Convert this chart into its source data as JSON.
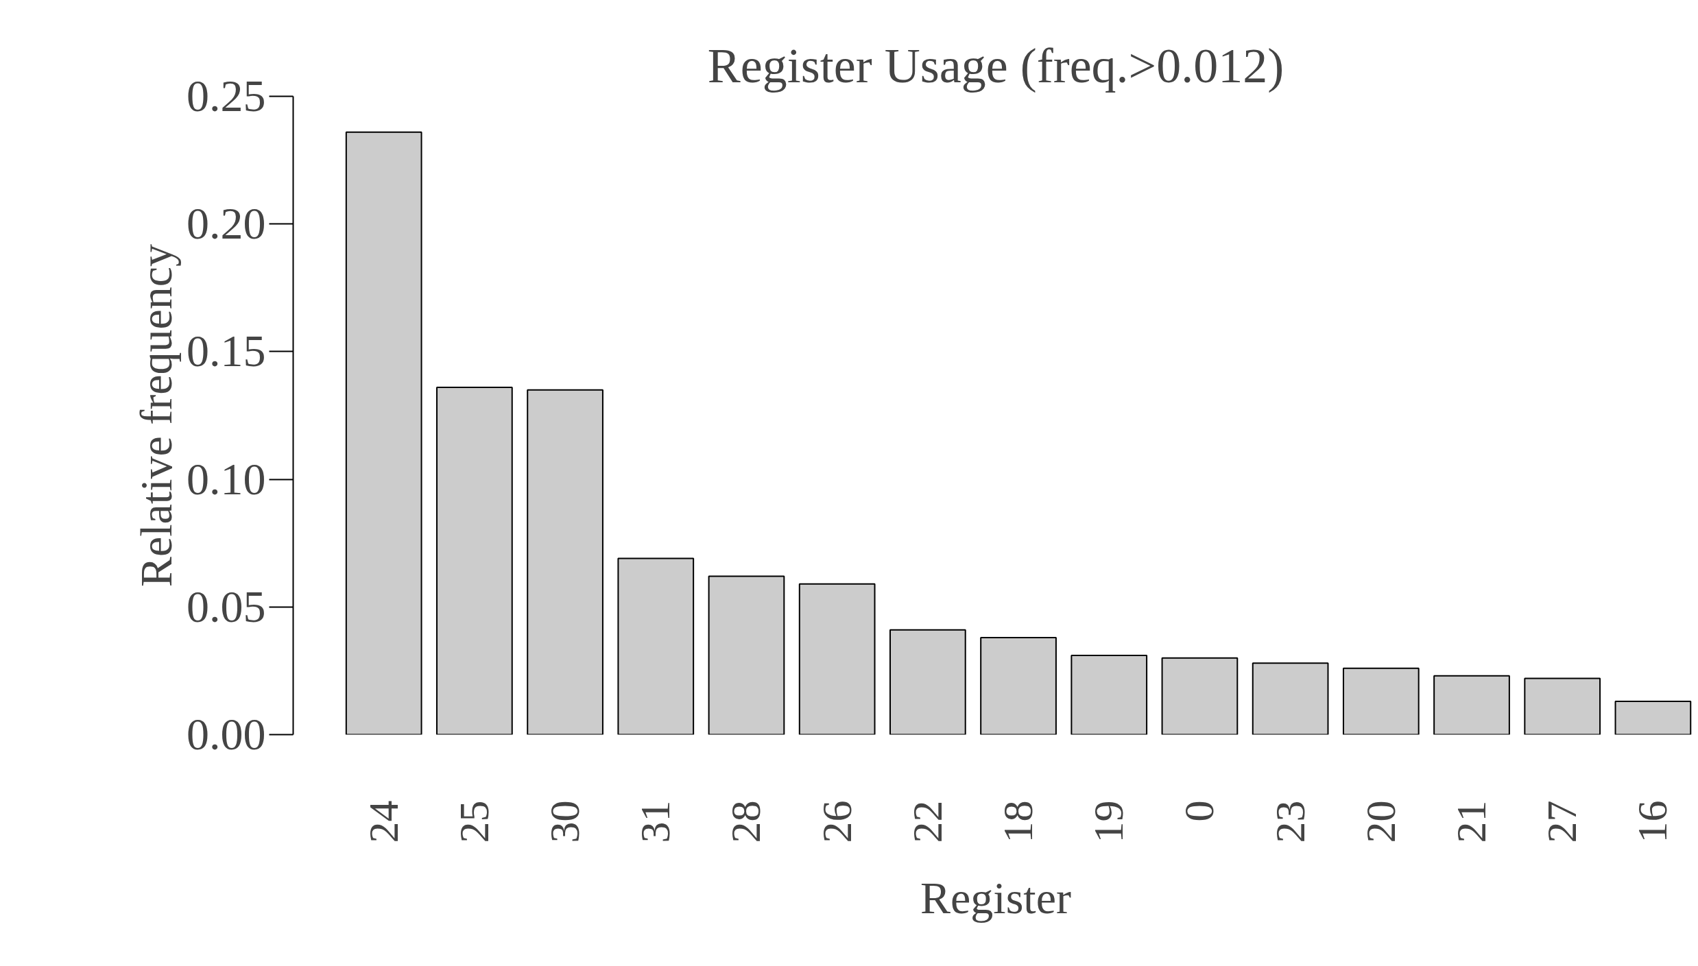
{
  "chart_data": {
    "type": "bar",
    "title": "Register Usage (freq.>0.012)",
    "xlabel": "Register",
    "ylabel": "Relative frequency",
    "categories": [
      "24",
      "25",
      "30",
      "31",
      "28",
      "26",
      "22",
      "18",
      "19",
      "0",
      "23",
      "20",
      "21",
      "27",
      "16"
    ],
    "values": [
      0.236,
      0.136,
      0.135,
      0.069,
      0.062,
      0.059,
      0.041,
      0.038,
      0.031,
      0.03,
      0.028,
      0.026,
      0.023,
      0.022,
      0.013
    ],
    "color": "#cccccc",
    "ylim": [
      0,
      0.25
    ],
    "yticks": [
      {
        "value": 0,
        "label": "0.00"
      },
      0.05,
      {
        "value": 0.1,
        "label": "0.10"
      },
      0.15,
      {
        "value": 0.2,
        "label": "0.20"
      },
      0.25
    ],
    "grid": false
  }
}
